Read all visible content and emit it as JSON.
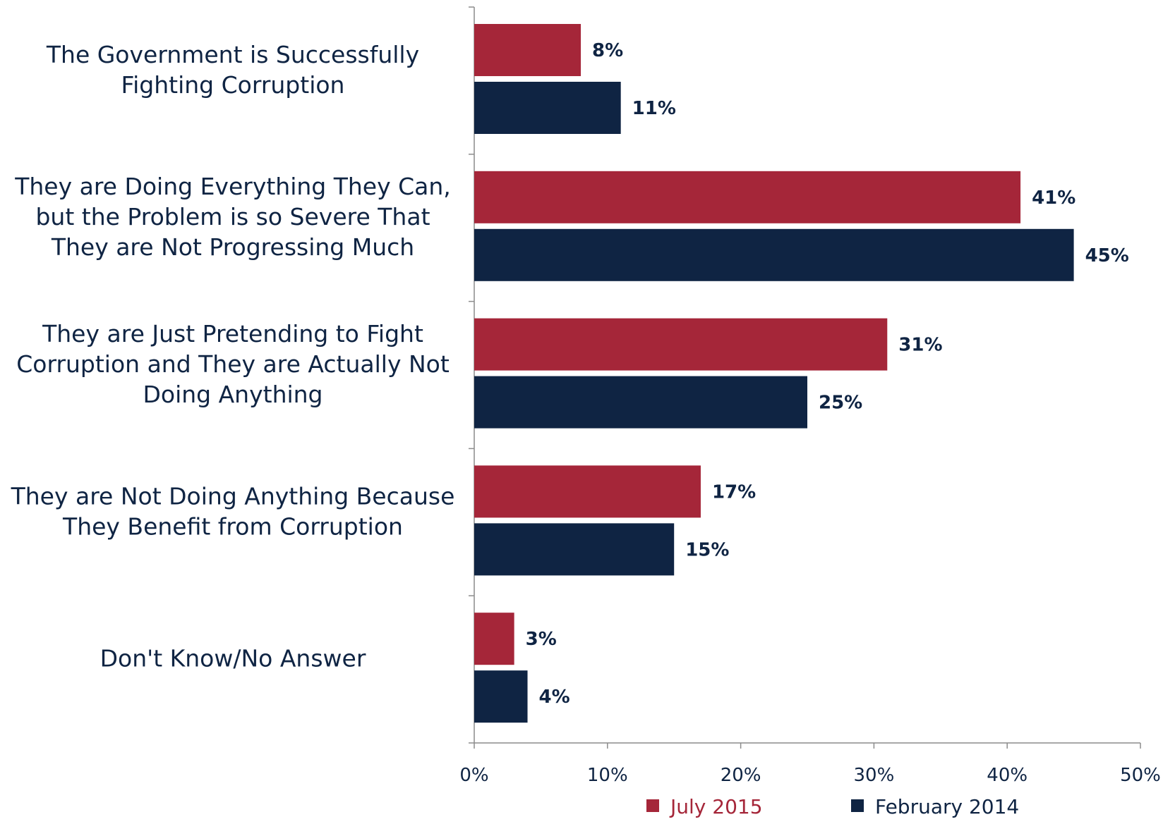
{
  "chart_data": {
    "type": "bar",
    "orientation": "horizontal",
    "categories": [
      [
        "The Government is Successfully",
        "Fighting Corruption"
      ],
      [
        "They are Doing Everything They Can,",
        "but the Problem is so Severe That",
        "They are Not Progressing Much"
      ],
      [
        "They are Just Pretending to Fight",
        "Corruption and They are Actually Not",
        "Doing Anything"
      ],
      [
        "They are Not Doing Anything Because",
        "They Benefit from Corruption"
      ],
      [
        "Don't Know/No Answer"
      ]
    ],
    "series": [
      {
        "name": "July 2015",
        "color": "#a52639",
        "values": [
          8,
          41,
          31,
          17,
          3
        ],
        "labels": [
          "8%",
          "41%",
          "31%",
          "17%",
          "3%"
        ]
      },
      {
        "name": "February 2014",
        "color": "#0f2443",
        "values": [
          11,
          45,
          25,
          15,
          4
        ],
        "labels": [
          "11%",
          "45%",
          "25%",
          "15%",
          "4%"
        ]
      }
    ],
    "xlim": [
      0,
      50
    ],
    "x_ticks": [
      0,
      10,
      20,
      30,
      40,
      50
    ],
    "x_tick_labels": [
      "0%",
      "10%",
      "20%",
      "30%",
      "40%",
      "50%"
    ],
    "grid": false,
    "legend_position": "bottom"
  }
}
